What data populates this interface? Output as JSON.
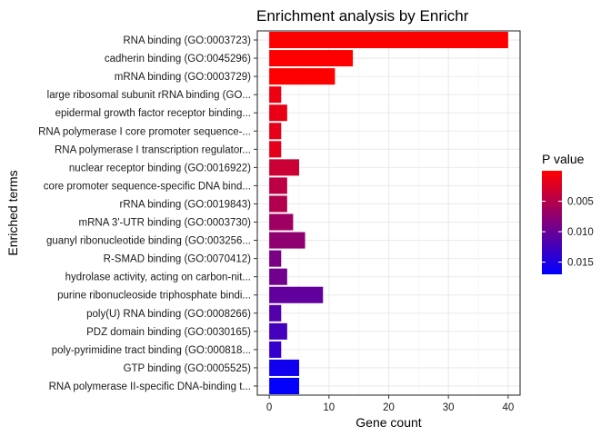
{
  "chart_data": {
    "type": "bar",
    "orientation": "horizontal",
    "title": "Enrichment analysis by Enrichr",
    "xlabel": "Gene count",
    "ylabel": "Enriched terms",
    "xlim": [
      -2,
      42
    ],
    "xticks": [
      0,
      10,
      20,
      30,
      40
    ],
    "grid": true,
    "legend_placement": "right",
    "colors": {
      "low_p": "#ff0000",
      "high_p": "#0000ff",
      "panel_border": "#333333",
      "grid_major": "#ebebeb",
      "grid_minor": "#f5f5f5"
    },
    "color_scale": {
      "title": "P value",
      "min": 0,
      "max": 0.017,
      "ticks": [
        0.005,
        0.01,
        0.015
      ],
      "tick_labels": [
        "0.005",
        "0.010",
        "0.015"
      ]
    },
    "categories": [
      "RNA binding (GO:0003723)",
      "cadherin binding (GO:0045296)",
      "mRNA binding (GO:0003729)",
      "large ribosomal subunit rRNA binding (GO...",
      "epidermal growth factor receptor binding...",
      "RNA polymerase I core promoter sequence-...",
      "RNA polymerase I transcription regulator...",
      "nuclear receptor binding (GO:0016922)",
      "core promoter sequence-specific DNA bind...",
      "rRNA binding (GO:0019843)",
      "mRNA 3'-UTR binding (GO:0003730)",
      "guanyl ribonucleotide binding (GO:003256...",
      "R-SMAD binding (GO:0070412)",
      "hydrolase activity, acting on carbon-nit...",
      "purine ribonucleoside triphosphate bindi...",
      "poly(U) RNA binding (GO:0008266)",
      "PDZ domain binding (GO:0030165)",
      "poly-pyrimidine tract binding (GO:000818...",
      "GTP binding (GO:0005525)",
      "RNA polymerase II-specific DNA-binding t..."
    ],
    "values": [
      40,
      14,
      11,
      2,
      3,
      2,
      2,
      5,
      3,
      3,
      4,
      6,
      2,
      3,
      9,
      2,
      3,
      2,
      5,
      5
    ],
    "p_values": [
      0.0,
      0.0,
      0.0,
      0.0012,
      0.0015,
      0.0017,
      0.0018,
      0.0035,
      0.0045,
      0.0052,
      0.0065,
      0.0075,
      0.0088,
      0.0095,
      0.0105,
      0.0115,
      0.0125,
      0.0135,
      0.016,
      0.0168
    ]
  }
}
